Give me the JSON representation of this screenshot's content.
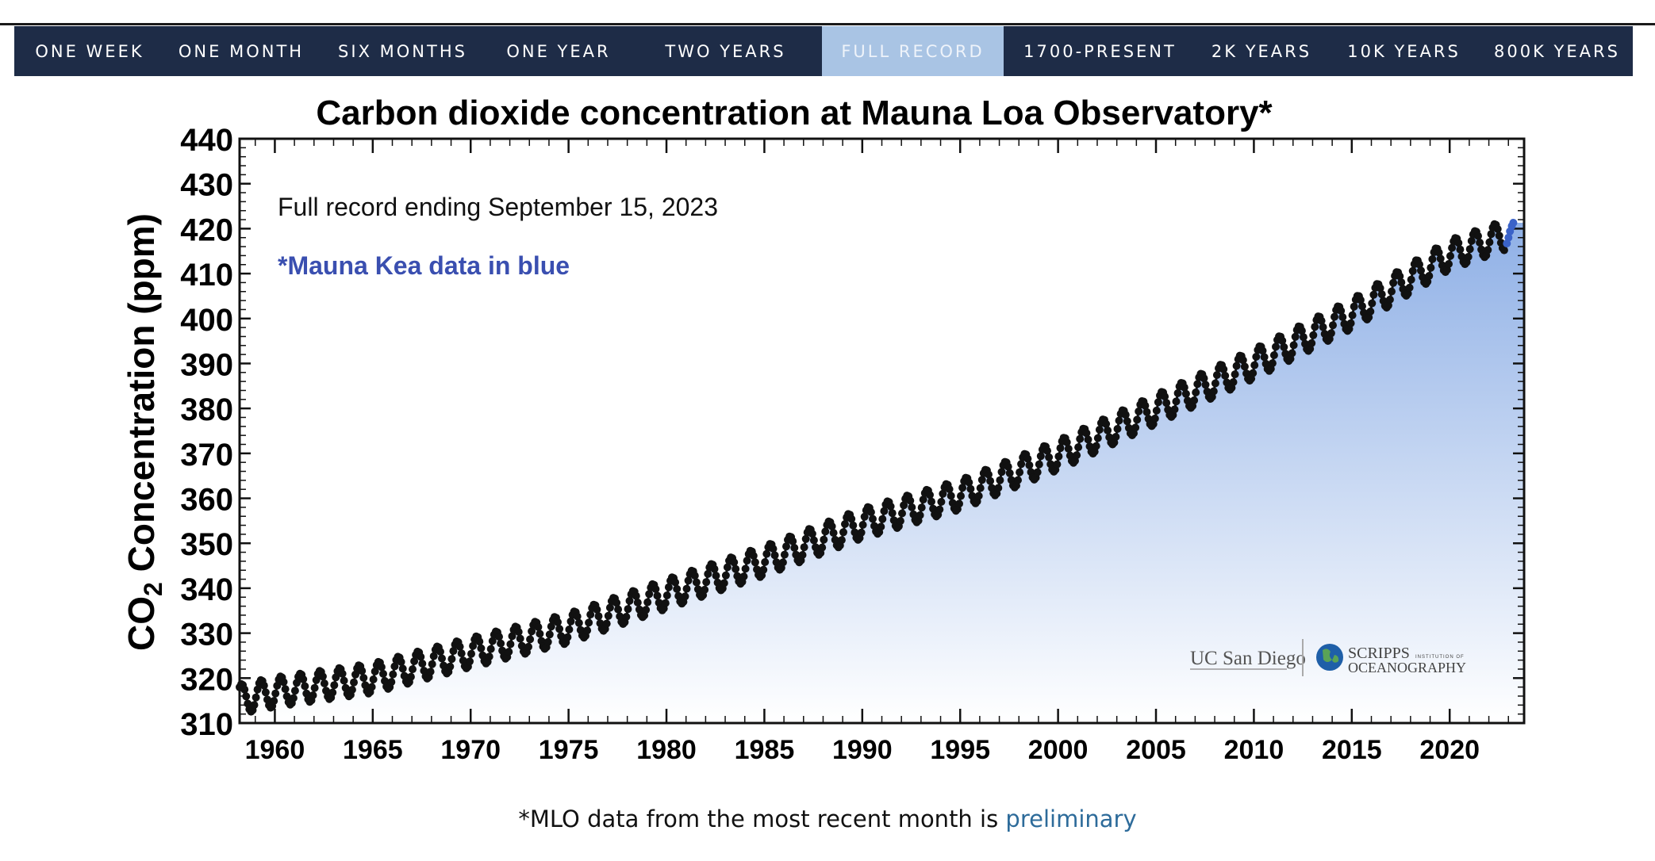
{
  "nav": {
    "tabs": [
      {
        "label": "ONE WEEK"
      },
      {
        "label": "ONE MONTH"
      },
      {
        "label": "SIX MONTHS"
      },
      {
        "label": "ONE YEAR"
      },
      {
        "label": "TWO YEARS"
      },
      {
        "label": "FULL RECORD",
        "active": true
      },
      {
        "label": "1700-PRESENT"
      },
      {
        "label": "2K YEARS"
      },
      {
        "label": "10K YEARS"
      },
      {
        "label": "800K YEARS"
      }
    ]
  },
  "chart_data": {
    "type": "scatter",
    "title": "Carbon dioxide concentration at Mauna Loa Observatory*",
    "ylabel_main": "CO",
    "ylabel_sub": "2",
    "ylabel_rest": " Concentration (ppm)",
    "xlabel": "",
    "ylim": [
      310,
      440
    ],
    "xlim": [
      1958.2,
      2023.8
    ],
    "yticks": [
      "310",
      "320",
      "330",
      "340",
      "350",
      "360",
      "370",
      "380",
      "390",
      "400",
      "410",
      "420",
      "430",
      "440"
    ],
    "xticks": [
      "1960",
      "1965",
      "1970",
      "1975",
      "1980",
      "1985",
      "1990",
      "1995",
      "2000",
      "2005",
      "2010",
      "2015",
      "2020"
    ],
    "annotation_record": "Full record ending September 15, 2023",
    "annotation_kea": "*Mauna Kea data in blue",
    "grid": false,
    "area_fill_colors": [
      "#ffffff",
      "#8fb0e6"
    ],
    "series": [
      {
        "color": "#111111",
        "trend_years": [
          1958.2,
          1960,
          1965,
          1970,
          1975,
          1980,
          1985,
          1990,
          1995,
          2000,
          2005,
          2010,
          2015,
          2020,
          2022.8
        ],
        "trend_ppm": [
          315.3,
          316.9,
          320.0,
          325.7,
          331.1,
          338.7,
          346.1,
          354.4,
          360.8,
          369.6,
          379.8,
          389.9,
          401.0,
          414.2,
          418.5
        ],
        "seasonal_amplitude_ppm": 3.3
      },
      {
        "color": "#3a62c8",
        "x": [
          2022.92,
          2023.0,
          2023.08,
          2023.17,
          2023.25
        ],
        "values": [
          416.7,
          418.0,
          419.4,
          420.6,
          421.3
        ]
      }
    ]
  },
  "logos": {
    "ucsd": "UC San Diego",
    "scripps_main": "SCRIPPS",
    "scripps_small": "INSTITUTION OF",
    "scripps_sub": "OCEANOGRAPHY"
  },
  "footer": {
    "caption_prefix": "*MLO data from the most recent month is ",
    "link_text": "preliminary"
  }
}
